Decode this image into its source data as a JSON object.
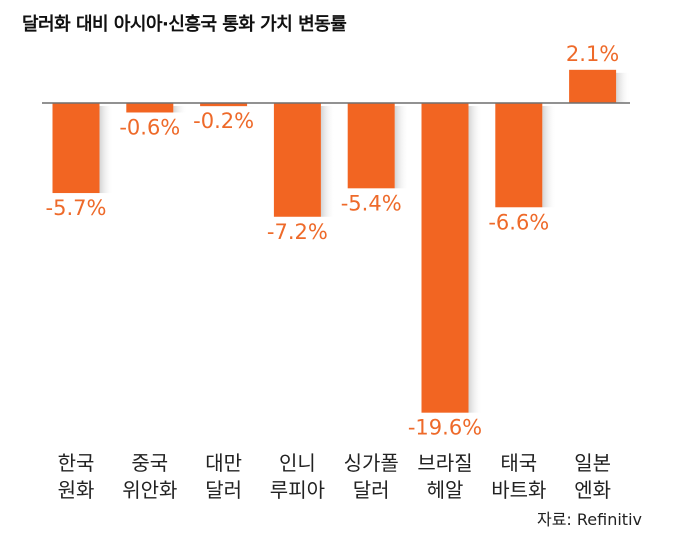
{
  "chart_data": {
    "type": "bar",
    "title": "달러화 대비 아시아·신흥국 통화 가치 변동률",
    "categories": [
      [
        "한국",
        "원화"
      ],
      [
        "중국",
        "위안화"
      ],
      [
        "대만",
        "달러"
      ],
      [
        "인니",
        "루피아"
      ],
      [
        "싱가폴",
        "달러"
      ],
      [
        "브라질",
        "헤알"
      ],
      [
        "태국",
        "바트화"
      ],
      [
        "일본",
        "엔화"
      ]
    ],
    "values": [
      -5.7,
      -0.6,
      -0.2,
      -7.2,
      -5.4,
      -19.6,
      -6.6,
      2.1
    ],
    "value_labels": [
      "-5.7%",
      "-0.6%",
      "-0.2%",
      "-7.2%",
      "-5.4%",
      "-19.6%",
      "-6.6%",
      "2.1%"
    ],
    "unit": "%",
    "ylim": [
      -19.6,
      2.1
    ],
    "grid": false,
    "legend": "none",
    "bar_color": "#f26522",
    "label_color": "#ee6a2a"
  },
  "source": "자료: Refinitiv"
}
